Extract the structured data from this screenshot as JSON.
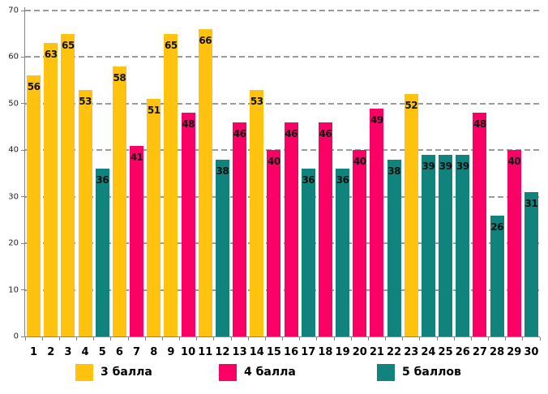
{
  "chart_data": {
    "type": "bar",
    "title": "",
    "xlabel": "",
    "ylabel": "",
    "ylim": [
      0,
      70
    ],
    "yticks": [
      0,
      10,
      20,
      30,
      40,
      50,
      60,
      70
    ],
    "grid": "horizontal-dashed",
    "legend_position": "bottom",
    "categories": [
      "1",
      "2",
      "3",
      "4",
      "5",
      "6",
      "7",
      "8",
      "9",
      "10",
      "11",
      "12",
      "13",
      "14",
      "15",
      "16",
      "17",
      "18",
      "19",
      "20",
      "21",
      "22",
      "23",
      "24",
      "25",
      "26",
      "27",
      "28",
      "29",
      "30"
    ],
    "values": [
      56,
      63,
      65,
      53,
      36,
      58,
      41,
      51,
      65,
      48,
      66,
      38,
      46,
      53,
      40,
      46,
      36,
      46,
      36,
      40,
      49,
      38,
      52,
      39,
      39,
      39,
      48,
      26,
      40,
      31
    ],
    "series_index_of_bar": [
      0,
      0,
      0,
      0,
      2,
      0,
      1,
      0,
      0,
      1,
      0,
      2,
      1,
      0,
      1,
      1,
      2,
      1,
      2,
      1,
      1,
      2,
      0,
      2,
      2,
      2,
      1,
      2,
      1,
      2
    ],
    "series": [
      {
        "name": "3 балла",
        "color": "#FFC20E"
      },
      {
        "name": "4 балла",
        "color": "#FA0265"
      },
      {
        "name": "5 баллов",
        "color": "#0F837C"
      }
    ],
    "value_labels_shown": true,
    "colors": {
      "grid": "#9b9b9b",
      "axis": "#848484",
      "label_text": "#121212",
      "background": "#ffffff"
    }
  }
}
